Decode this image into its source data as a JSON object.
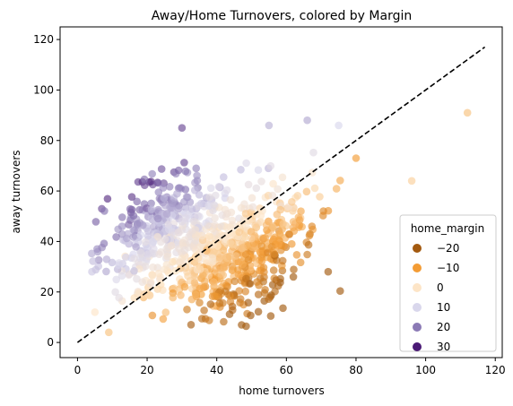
{
  "chart_data": {
    "type": "scatter",
    "title": "Away/Home Turnovers, colored by Margin",
    "xlabel": "home turnovers",
    "ylabel": "away turnovers",
    "xlim": [
      -5,
      122
    ],
    "ylim": [
      -6,
      125
    ],
    "xticks": [
      0,
      20,
      40,
      60,
      80,
      100,
      120
    ],
    "yticks": [
      0,
      20,
      40,
      60,
      80,
      100,
      120
    ],
    "grid": false,
    "reference_line": {
      "style": "dashed",
      "color": "#000000",
      "x": [
        0,
        117
      ],
      "y": [
        0,
        117
      ]
    },
    "color_variable": "home_margin",
    "legend": {
      "title": "home_margin",
      "placement": "lower-right",
      "entries": [
        {
          "label": "−20",
          "color": "#a35a10"
        },
        {
          "label": "−10",
          "color": "#f39c35"
        },
        {
          "label": "0",
          "color": "#fde5c7"
        },
        {
          "label": "10",
          "color": "#d9d7ec"
        },
        {
          "label": "20",
          "color": "#8b7ab5"
        },
        {
          "label": "30",
          "color": "#4a1a75"
        }
      ]
    },
    "notable_points": [
      {
        "x": 112,
        "y": 91,
        "margin": -5
      },
      {
        "x": 96,
        "y": 64,
        "margin": -3
      },
      {
        "x": 80,
        "y": 73,
        "margin": -10
      },
      {
        "x": 72,
        "y": 28,
        "margin": -20
      },
      {
        "x": 30,
        "y": 85,
        "margin": 25
      },
      {
        "x": 66,
        "y": 88,
        "margin": 15
      },
      {
        "x": 55,
        "y": 86,
        "margin": 14
      },
      {
        "x": 75,
        "y": 86,
        "margin": 10
      },
      {
        "x": 62,
        "y": 26,
        "margin": -20
      },
      {
        "x": 9,
        "y": 4,
        "margin": -5
      },
      {
        "x": 5,
        "y": 12,
        "margin": 0
      }
    ],
    "point_density": [
      {
        "x": 25,
        "y": 45,
        "spread": 7,
        "count": 180
      },
      {
        "x": 40,
        "y": 28,
        "spread": 9,
        "count": 300
      },
      {
        "x": 48,
        "y": 40,
        "spread": 8,
        "count": 200
      },
      {
        "x": 30,
        "y": 58,
        "spread": 8,
        "count": 90
      },
      {
        "x": 18,
        "y": 30,
        "spread": 6,
        "count": 80
      },
      {
        "x": 58,
        "y": 52,
        "spread": 9,
        "count": 80
      }
    ]
  }
}
